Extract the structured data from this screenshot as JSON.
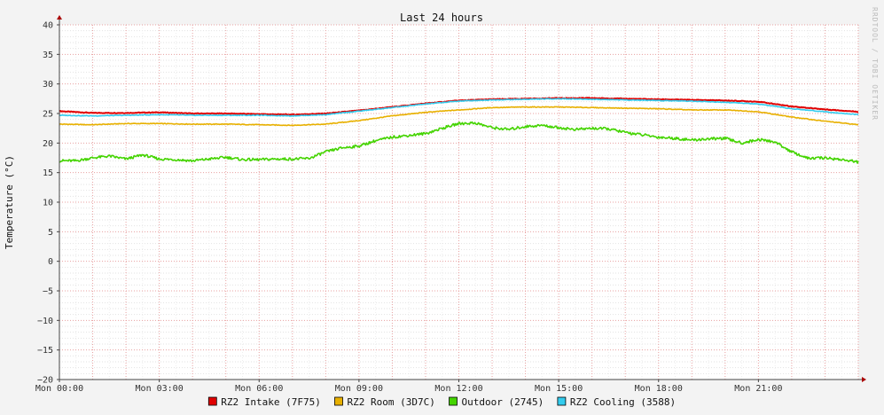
{
  "watermark": "RRDTOOL / TOBI OETIKER",
  "chart_data": {
    "type": "line",
    "title": "Last 24 hours",
    "xlabel": "",
    "ylabel": "Temperature (°C)",
    "ylim": [
      -20,
      40
    ],
    "xlim": [
      0,
      24
    ],
    "yticks": [
      40,
      35,
      30,
      25,
      20,
      15,
      10,
      5,
      0,
      -5,
      -10,
      -15,
      -20
    ],
    "ytick_labels": [
      "40",
      "35",
      "30",
      "25",
      "20",
      "15",
      "10",
      "5",
      "0",
      "−5",
      "−10",
      "−15",
      "−20"
    ],
    "xticks": [
      0,
      3,
      6,
      9,
      12,
      15,
      18,
      21
    ],
    "xtick_labels": [
      "Mon 00:00",
      "Mon 03:00",
      "Mon 06:00",
      "Mon 09:00",
      "Mon 12:00",
      "Mon 15:00",
      "Mon 18:00",
      "Mon 21:00"
    ],
    "grid": true,
    "legend_position": "bottom",
    "series": [
      {
        "name": "RZ2 Intake (7F75)",
        "color": "#e00000",
        "x": [
          0,
          1,
          2,
          3,
          4,
          5,
          6,
          7,
          8,
          9,
          10,
          11,
          12,
          13,
          14,
          15,
          16,
          17,
          18,
          19,
          20,
          21,
          22,
          23,
          24
        ],
        "y": [
          25.4,
          25.1,
          25.1,
          25.2,
          25.0,
          25.0,
          24.9,
          24.8,
          25.0,
          25.5,
          26.1,
          26.7,
          27.2,
          27.4,
          27.5,
          27.6,
          27.6,
          27.5,
          27.4,
          27.3,
          27.2,
          27.0,
          26.2,
          25.7,
          25.3
        ]
      },
      {
        "name": "RZ2 Room (3D7C)",
        "color": "#e8b000",
        "x": [
          0,
          1,
          2,
          3,
          4,
          5,
          6,
          7,
          8,
          9,
          10,
          11,
          12,
          13,
          14,
          15,
          16,
          17,
          18,
          19,
          20,
          21,
          22,
          23,
          24
        ],
        "y": [
          23.2,
          23.1,
          23.3,
          23.3,
          23.2,
          23.2,
          23.1,
          23.0,
          23.2,
          23.8,
          24.6,
          25.2,
          25.6,
          26.0,
          26.1,
          26.1,
          26.0,
          25.9,
          25.8,
          25.6,
          25.6,
          25.3,
          24.4,
          23.7,
          23.1
        ]
      },
      {
        "name": "Outdoor (2745)",
        "color": "#44d400",
        "x": [
          0,
          0.5,
          1,
          1.5,
          2,
          2.5,
          3,
          3.5,
          4,
          4.5,
          5,
          5.5,
          6,
          6.5,
          7,
          7.5,
          8,
          8.5,
          9,
          9.5,
          10,
          10.5,
          11,
          11.5,
          12,
          12.5,
          13,
          13.5,
          14,
          14.5,
          15,
          15.5,
          16,
          16.5,
          17,
          17.5,
          18,
          18.5,
          19,
          19.5,
          20,
          20.5,
          21,
          21.5,
          22,
          22.5,
          23,
          23.5,
          24
        ],
        "y": [
          17.0,
          17.0,
          17.5,
          17.8,
          17.3,
          18.0,
          17.3,
          17.2,
          17.0,
          17.3,
          17.6,
          17.2,
          17.2,
          17.3,
          17.3,
          17.4,
          18.5,
          19.2,
          19.5,
          20.4,
          21.0,
          21.3,
          21.6,
          22.5,
          23.3,
          23.4,
          22.6,
          22.3,
          22.8,
          23.0,
          22.6,
          22.3,
          22.5,
          22.4,
          21.8,
          21.4,
          21.0,
          20.8,
          20.5,
          20.7,
          20.8,
          20.0,
          20.6,
          20.2,
          18.5,
          17.4,
          17.5,
          17.2,
          16.8
        ]
      },
      {
        "name": "RZ2 Cooling (3588)",
        "color": "#33ccee",
        "x": [
          0,
          1,
          2,
          3,
          4,
          5,
          6,
          7,
          8,
          9,
          10,
          11,
          12,
          13,
          14,
          15,
          16,
          17,
          18,
          19,
          20,
          21,
          22,
          23,
          24
        ],
        "y": [
          24.7,
          24.6,
          24.7,
          24.8,
          24.7,
          24.7,
          24.7,
          24.6,
          24.8,
          25.4,
          26.0,
          26.6,
          27.1,
          27.3,
          27.4,
          27.5,
          27.4,
          27.3,
          27.2,
          27.1,
          26.9,
          26.6,
          25.8,
          25.3,
          24.8
        ]
      }
    ]
  }
}
